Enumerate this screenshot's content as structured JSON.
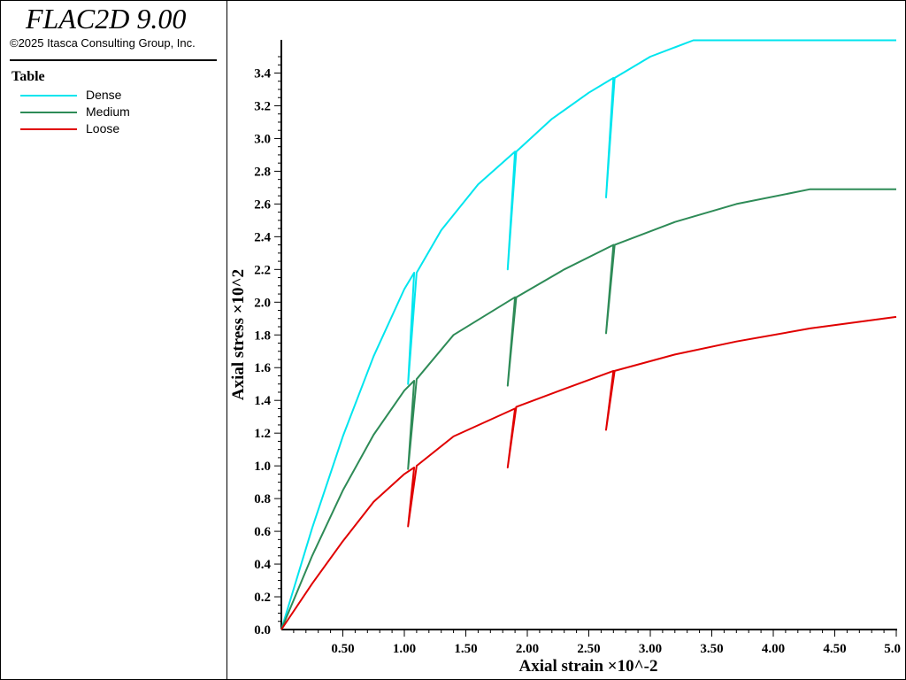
{
  "app": {
    "title": "FLAC2D 9.00",
    "copyright": "©2025 Itasca Consulting Group, Inc."
  },
  "legend": {
    "title": "Table",
    "items": [
      {
        "label": "Dense",
        "color": "#00e5ee"
      },
      {
        "label": "Medium",
        "color": "#2e8b57"
      },
      {
        "label": "Loose",
        "color": "#e00000"
      }
    ]
  },
  "chart_data": {
    "type": "line",
    "xlabel": "Axial strain ×10^-2",
    "ylabel": "Axial stress ×10^2",
    "xlim": [
      0,
      5.0
    ],
    "ylim": [
      0,
      3.6
    ],
    "x_ticks": [
      "0.50",
      "1.00",
      "1.50",
      "2.00",
      "2.50",
      "3.00",
      "3.50",
      "4.00",
      "4.50",
      "5.0"
    ],
    "y_ticks": [
      "0.0",
      "0.2",
      "0.4",
      "0.6",
      "0.8",
      "1.0",
      "1.2",
      "1.4",
      "1.6",
      "1.8",
      "2.0",
      "2.2",
      "2.4",
      "2.6",
      "2.8",
      "3.0",
      "3.2",
      "3.4"
    ],
    "grid": false,
    "legend_position": "left panel",
    "series": [
      {
        "name": "Dense",
        "color": "#00e5ee",
        "points": [
          [
            0,
            0
          ],
          [
            0.25,
            0.62
          ],
          [
            0.5,
            1.18
          ],
          [
            0.75,
            1.67
          ],
          [
            1.0,
            2.08
          ],
          [
            1.08,
            2.18
          ],
          [
            1.03,
            1.5
          ],
          [
            1.1,
            2.18
          ],
          [
            1.3,
            2.44
          ],
          [
            1.6,
            2.72
          ],
          [
            1.9,
            2.92
          ],
          [
            1.84,
            2.2
          ],
          [
            1.91,
            2.92
          ],
          [
            2.2,
            3.12
          ],
          [
            2.5,
            3.28
          ],
          [
            2.7,
            3.37
          ],
          [
            2.64,
            2.64
          ],
          [
            2.71,
            3.37
          ],
          [
            3.0,
            3.5
          ],
          [
            3.35,
            3.6
          ],
          [
            5.0,
            3.6
          ]
        ]
      },
      {
        "name": "Medium",
        "color": "#2e8b57",
        "points": [
          [
            0,
            0
          ],
          [
            0.25,
            0.45
          ],
          [
            0.5,
            0.85
          ],
          [
            0.75,
            1.19
          ],
          [
            1.0,
            1.46
          ],
          [
            1.08,
            1.52
          ],
          [
            1.03,
            0.98
          ],
          [
            1.1,
            1.53
          ],
          [
            1.4,
            1.8
          ],
          [
            1.9,
            2.03
          ],
          [
            1.84,
            1.49
          ],
          [
            1.91,
            2.03
          ],
          [
            2.3,
            2.2
          ],
          [
            2.7,
            2.35
          ],
          [
            2.64,
            1.81
          ],
          [
            2.71,
            2.35
          ],
          [
            3.2,
            2.49
          ],
          [
            3.7,
            2.6
          ],
          [
            4.3,
            2.69
          ],
          [
            5.0,
            2.69
          ]
        ]
      },
      {
        "name": "Loose",
        "color": "#e00000",
        "points": [
          [
            0,
            0
          ],
          [
            0.25,
            0.28
          ],
          [
            0.5,
            0.54
          ],
          [
            0.75,
            0.78
          ],
          [
            1.0,
            0.95
          ],
          [
            1.08,
            0.99
          ],
          [
            1.03,
            0.63
          ],
          [
            1.1,
            1.0
          ],
          [
            1.4,
            1.18
          ],
          [
            1.9,
            1.35
          ],
          [
            1.84,
            0.99
          ],
          [
            1.91,
            1.36
          ],
          [
            2.3,
            1.47
          ],
          [
            2.7,
            1.58
          ],
          [
            2.64,
            1.22
          ],
          [
            2.71,
            1.58
          ],
          [
            3.2,
            1.68
          ],
          [
            3.7,
            1.76
          ],
          [
            4.3,
            1.84
          ],
          [
            5.0,
            1.91
          ]
        ]
      }
    ]
  }
}
